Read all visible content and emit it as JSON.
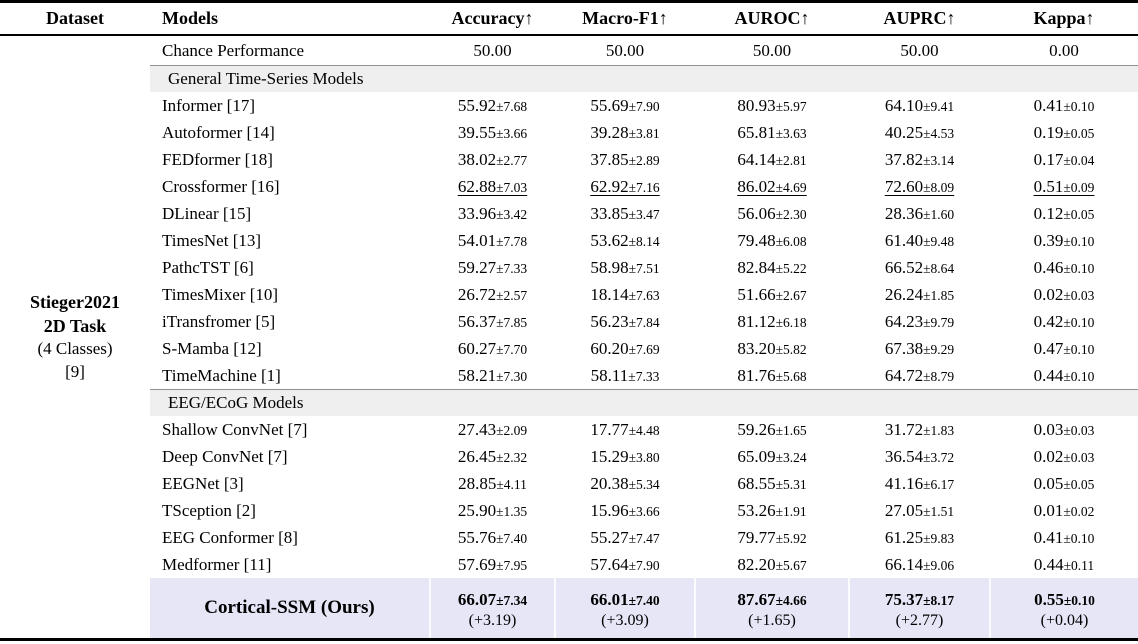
{
  "headers": [
    "Dataset",
    "Models",
    "Accuracy↑",
    "Macro-F1↑",
    "AUROC↑",
    "AUPRC↑",
    "Kappa↑"
  ],
  "dataset": {
    "line1": "Stieger2021",
    "line2": "2D Task",
    "line3": "(4 Classes)",
    "line4": "[9]"
  },
  "chance": {
    "model": "Chance Performance",
    "values": [
      "50.00",
      "50.00",
      "50.00",
      "50.00",
      "0.00"
    ]
  },
  "sections": [
    {
      "label": "General Time-Series Models",
      "rows": [
        {
          "model": "Informer [17]",
          "cells": [
            [
              "55.92",
              "±7.68"
            ],
            [
              "55.69",
              "±7.90"
            ],
            [
              "80.93",
              "±5.97"
            ],
            [
              "64.10",
              "±9.41"
            ],
            [
              "0.41",
              "±0.10"
            ]
          ]
        },
        {
          "model": "Autoformer [14]",
          "cells": [
            [
              "39.55",
              "±3.66"
            ],
            [
              "39.28",
              "±3.81"
            ],
            [
              "65.81",
              "±3.63"
            ],
            [
              "40.25",
              "±4.53"
            ],
            [
              "0.19",
              "±0.05"
            ]
          ]
        },
        {
          "model": "FEDformer [18]",
          "cells": [
            [
              "38.02",
              "±2.77"
            ],
            [
              "37.85",
              "±2.89"
            ],
            [
              "64.14",
              "±2.81"
            ],
            [
              "37.82",
              "±3.14"
            ],
            [
              "0.17",
              "±0.04"
            ]
          ]
        },
        {
          "model": "Crossformer [16]",
          "cells": [
            [
              "62.88",
              "±7.03"
            ],
            [
              "62.92",
              "±7.16"
            ],
            [
              "86.02",
              "±4.69"
            ],
            [
              "72.60",
              "±8.09"
            ],
            [
              "0.51",
              "±0.09"
            ]
          ]
        },
        {
          "model": "DLinear [15]",
          "cells": [
            [
              "33.96",
              "±3.42"
            ],
            [
              "33.85",
              "±3.47"
            ],
            [
              "56.06",
              "±2.30"
            ],
            [
              "28.36",
              "±1.60"
            ],
            [
              "0.12",
              "±0.05"
            ]
          ]
        },
        {
          "model": "TimesNet [13]",
          "cells": [
            [
              "54.01",
              "±7.78"
            ],
            [
              "53.62",
              "±8.14"
            ],
            [
              "79.48",
              "±6.08"
            ],
            [
              "61.40",
              "±9.48"
            ],
            [
              "0.39",
              "±0.10"
            ]
          ]
        },
        {
          "model": "PathcTST [6]",
          "cells": [
            [
              "59.27",
              "±7.33"
            ],
            [
              "58.98",
              "±7.51"
            ],
            [
              "82.84",
              "±5.22"
            ],
            [
              "66.52",
              "±8.64"
            ],
            [
              "0.46",
              "±0.10"
            ]
          ]
        },
        {
          "model": "TimesMixer [10]",
          "cells": [
            [
              "26.72",
              "±2.57"
            ],
            [
              "18.14",
              "±7.63"
            ],
            [
              "51.66",
              "±2.67"
            ],
            [
              "26.24",
              "±1.85"
            ],
            [
              "0.02",
              "±0.03"
            ]
          ]
        },
        {
          "model": "iTransfromer [5]",
          "cells": [
            [
              "56.37",
              "±7.85"
            ],
            [
              "56.23",
              "±7.84"
            ],
            [
              "81.12",
              "±6.18"
            ],
            [
              "64.23",
              "±9.79"
            ],
            [
              "0.42",
              "±0.10"
            ]
          ]
        },
        {
          "model": "S-Mamba [12]",
          "cells": [
            [
              "60.27",
              "±7.70"
            ],
            [
              "60.20",
              "±7.69"
            ],
            [
              "83.20",
              "±5.82"
            ],
            [
              "67.38",
              "±9.29"
            ],
            [
              "0.47",
              "±0.10"
            ]
          ]
        },
        {
          "model": "TimeMachine [1]",
          "cells": [
            [
              "58.21",
              "±7.30"
            ],
            [
              "58.11",
              "±7.33"
            ],
            [
              "81.76",
              "±5.68"
            ],
            [
              "64.72",
              "±8.79"
            ],
            [
              "0.44",
              "±0.10"
            ]
          ]
        }
      ]
    },
    {
      "label": "EEG/ECoG Models",
      "rows": [
        {
          "model": "Shallow ConvNet [7]",
          "cells": [
            [
              "27.43",
              "±2.09"
            ],
            [
              "17.77",
              "±4.48"
            ],
            [
              "59.26",
              "±1.65"
            ],
            [
              "31.72",
              "±1.83"
            ],
            [
              "0.03",
              "±0.03"
            ]
          ]
        },
        {
          "model": "Deep ConvNet [7]",
          "cells": [
            [
              "26.45",
              "±2.32"
            ],
            [
              "15.29",
              "±3.80"
            ],
            [
              "65.09",
              "±3.24"
            ],
            [
              "36.54",
              "±3.72"
            ],
            [
              "0.02",
              "±0.03"
            ]
          ]
        },
        {
          "model": "EEGNet [3]",
          "cells": [
            [
              "28.85",
              "±4.11"
            ],
            [
              "20.38",
              "±5.34"
            ],
            [
              "68.55",
              "±5.31"
            ],
            [
              "41.16",
              "±6.17"
            ],
            [
              "0.05",
              "±0.05"
            ]
          ]
        },
        {
          "model": "TSception [2]",
          "cells": [
            [
              "25.90",
              "±1.35"
            ],
            [
              "15.96",
              "±3.66"
            ],
            [
              "53.26",
              "±1.91"
            ],
            [
              "27.05",
              "±1.51"
            ],
            [
              "0.01",
              "±0.02"
            ]
          ]
        },
        {
          "model": "EEG Conformer [8]",
          "cells": [
            [
              "55.76",
              "±7.40"
            ],
            [
              "55.27",
              "±7.47"
            ],
            [
              "79.77",
              "±5.92"
            ],
            [
              "61.25",
              "±9.83"
            ],
            [
              "0.41",
              "±0.10"
            ]
          ]
        },
        {
          "model": "Medformer [11]",
          "cells": [
            [
              "57.69",
              "±7.95"
            ],
            [
              "57.64",
              "±7.90"
            ],
            [
              "82.20",
              "±5.67"
            ],
            [
              "66.14",
              "±9.06"
            ],
            [
              "0.44",
              "±0.11"
            ]
          ]
        }
      ]
    }
  ],
  "ours": {
    "model": "Cortical-SSM (Ours)",
    "cells": [
      {
        "m": "66.07",
        "s": "±7.34",
        "d": "(+3.19)"
      },
      {
        "m": "66.01",
        "s": "±7.40",
        "d": "(+3.09)"
      },
      {
        "m": "87.67",
        "s": "±4.66",
        "d": "(+1.65)"
      },
      {
        "m": "75.37",
        "s": "±8.17",
        "d": "(+2.77)"
      },
      {
        "m": "0.55",
        "s": "±0.10",
        "d": "(+0.04)"
      }
    ]
  },
  "colors": {
    "section_band_bg": "#efefef",
    "highlight_row_bg": "#e6e6f7",
    "rule_color": "#000000",
    "midrule_color": "#8f8f8f",
    "text": "#000000"
  }
}
